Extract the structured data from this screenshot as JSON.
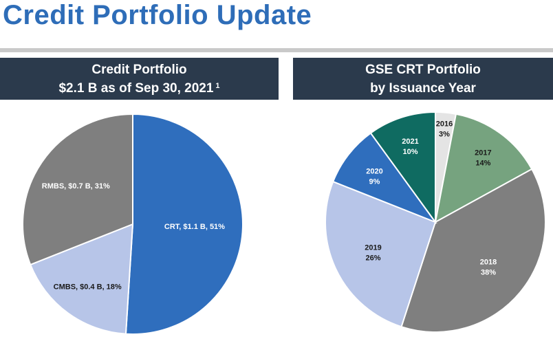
{
  "page": {
    "title": "Credit Portfolio Update"
  },
  "left_panel": {
    "header_line1": "Credit Portfolio",
    "header_line2": "$2.1 B as of Sep 30, 2021",
    "footnote_marker": "1"
  },
  "right_panel": {
    "header_line1": "GSE CRT Portfolio",
    "header_line2": "by Issuance Year"
  },
  "chart_data": [
    {
      "type": "pie",
      "title": "Credit Portfolio $2.1 B as of Sep 30, 2021",
      "start_angle_deg": 0,
      "direction": "clockwise",
      "slices": [
        {
          "label": "CRT",
          "value_text": "$1.1 B",
          "percent": 51,
          "display": "CRT, $1.1 B, 51%",
          "color": "#2f6ebd",
          "text_color": "#ffffff"
        },
        {
          "label": "CMBS",
          "value_text": "$0.4 B",
          "percent": 18,
          "display": "CMBS, $0.4 B, 18%",
          "color": "#b7c5e8",
          "text_color": "#1a1a1a"
        },
        {
          "label": "RMBS",
          "value_text": "$0.7 B",
          "percent": 31,
          "display": "RMBS, $0.7 B, 31%",
          "color": "#7f7f7f",
          "text_color": "#ffffff"
        }
      ]
    },
    {
      "type": "pie",
      "title": "GSE CRT Portfolio by Issuance Year",
      "start_angle_deg": 0,
      "direction": "clockwise",
      "slices": [
        {
          "label": "2016",
          "percent": 3,
          "pct_text": "3%",
          "color": "#e4e4e4",
          "text_color": "#1a1a1a"
        },
        {
          "label": "2017",
          "percent": 14,
          "pct_text": "14%",
          "color": "#76a37f",
          "text_color": "#1a1a1a"
        },
        {
          "label": "2018",
          "percent": 38,
          "pct_text": "38%",
          "color": "#7f7f7f",
          "text_color": "#ffffff"
        },
        {
          "label": "2019",
          "percent": 26,
          "pct_text": "26%",
          "color": "#b7c5e8",
          "text_color": "#1a1a1a"
        },
        {
          "label": "2020",
          "percent": 9,
          "pct_text": "9%",
          "color": "#2f6ebd",
          "text_color": "#ffffff"
        },
        {
          "label": "2021",
          "percent": 10,
          "pct_text": "10%",
          "color": "#0f6b61",
          "text_color": "#ffffff"
        }
      ]
    }
  ]
}
